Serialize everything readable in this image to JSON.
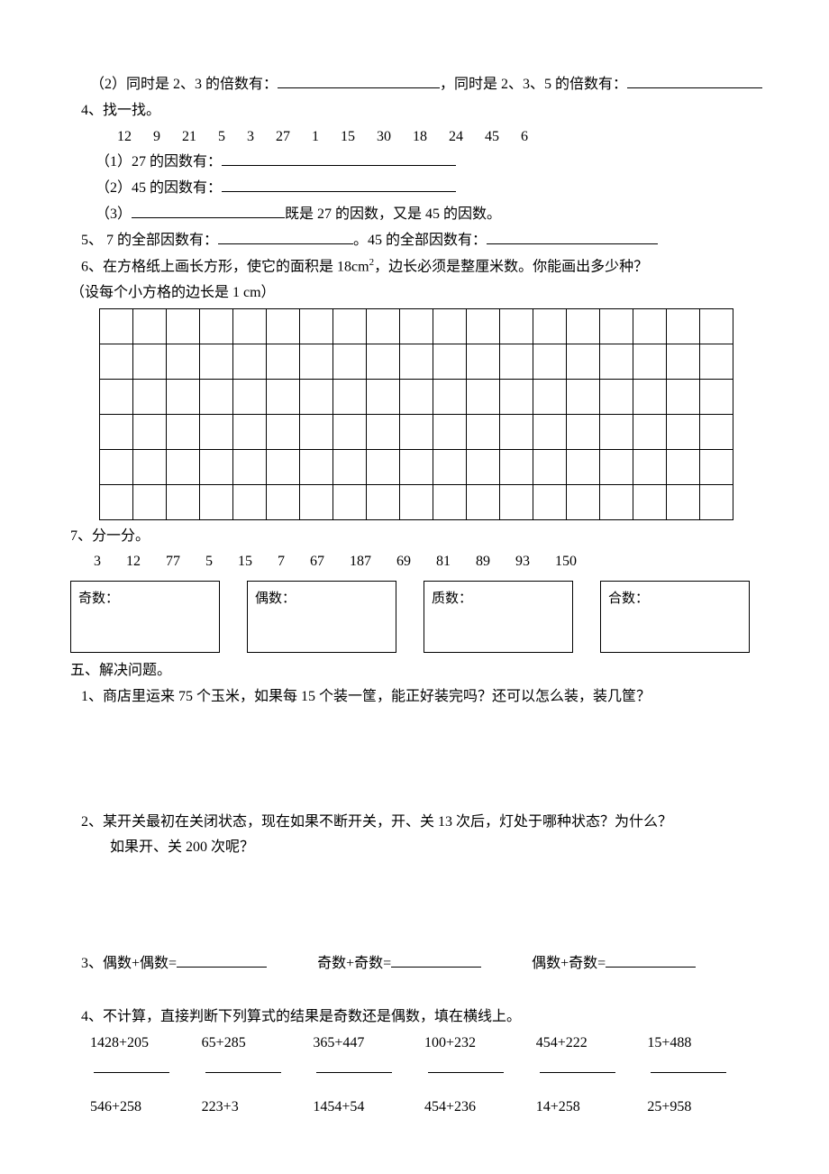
{
  "q3_2": {
    "prefix": "（2）同时是 2、3 的倍数有：",
    "mid": "，同时是 2、3、5 的倍数有："
  },
  "q4": {
    "title": "4、找一找。",
    "numbers": [
      "12",
      "9",
      "21",
      "5",
      "3",
      "27",
      "1",
      "15",
      "30",
      "18",
      "24",
      "45",
      "6"
    ],
    "p1": "（1）27 的因数有：",
    "p2": "（2）45 的因数有：",
    "p3_prefix": "（3）",
    "p3_suffix": "既是 27 的因数，又是 45 的因数。"
  },
  "q5": {
    "a": "5、 7 的全部因数有：",
    "b": "。45 的全部因数有："
  },
  "q6": {
    "line1_a": "6、在方格纸上画长方形，使它的面积是 18cm",
    "line1_b": "，边长必须是整厘米数。你能画出多少种？",
    "line2": "（设每个小方格的边长是 1 cm）",
    "grid_cols": 19,
    "grid_rows": 6
  },
  "q7": {
    "title": "7、分一分。",
    "numbers": [
      "3",
      "12",
      "77",
      "5",
      "15",
      "7",
      "67",
      "187",
      "69",
      "81",
      "89",
      "93",
      "150"
    ],
    "box1": "奇数：",
    "box2": "偶数：",
    "box3": "质数：",
    "box4": "合数："
  },
  "sec5": {
    "title": "五、解决问题。",
    "q1": "1、商店里运来 75 个玉米，如果每 15 个装一筐，能正好装完吗？还可以怎么装，装几筐？",
    "q2a": "2、某开关最初在关闭状态，现在如果不断开关，开、关 13 次后，灯处于哪种状态？为什么？",
    "q2b": "如果开、关 200 次呢？",
    "q3": {
      "a": "3、偶数+偶数=",
      "b": "奇数+奇数=",
      "c": "偶数+奇数="
    },
    "q4title": "4、不计算，直接判断下列算式的结果是奇数还是偶数，填在横线上。",
    "row1": [
      "1428+205",
      "65+285",
      "365+447",
      "100+232",
      "454+222",
      "15+488"
    ],
    "row2": [
      "546+258",
      "223+3",
      "1454+54",
      "454+236",
      "14+258",
      "25+958"
    ]
  },
  "blank_widths": {
    "long": 180,
    "long2": 150,
    "med": 260,
    "short": 160,
    "q3": 110
  }
}
